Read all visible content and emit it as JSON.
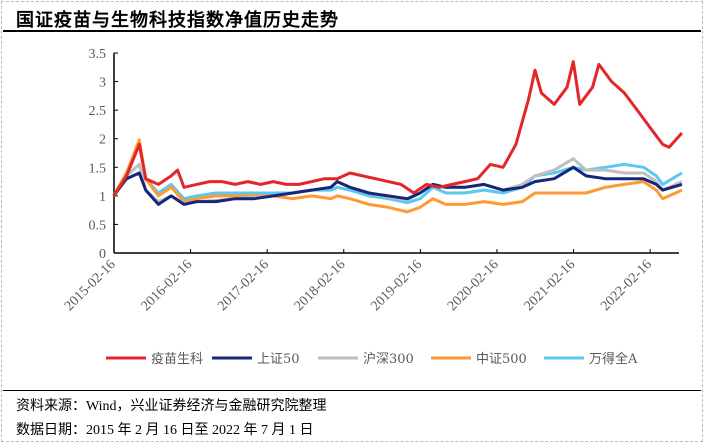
{
  "title": "国证疫苗与生物科技指数净值历史走势",
  "footer": {
    "source": "资料来源：Wind，兴业证券经济与金融研究院整理",
    "date_range": "数据日期：2015 年 2 月 16 日至 2022 年 7 月 1 日"
  },
  "chart_data": {
    "type": "line",
    "title": "国证疫苗与生物科技指数净值历史走势",
    "xlabel": "",
    "ylabel": "",
    "ylim": [
      0,
      3.5
    ],
    "yticks": [
      "0",
      "0.5",
      "1",
      "1.5",
      "2",
      "2.5",
      "3",
      "3.5"
    ],
    "xticks": [
      "2015-02-16",
      "2016-02-16",
      "2017-02-16",
      "2018-02-16",
      "2019-02-16",
      "2020-02-16",
      "2021-02-16",
      "2022-02-16"
    ],
    "x_range": [
      "2015-02-16",
      "2022-07-01"
    ],
    "grid": false,
    "legend_position": "bottom",
    "series": [
      {
        "name": "疫苗生科",
        "color": "#e3262a",
        "x": [
          "2015-02",
          "2015-04",
          "2015-06",
          "2015-07",
          "2015-09",
          "2015-11",
          "2015-12",
          "2016-01",
          "2016-03",
          "2016-05",
          "2016-07",
          "2016-09",
          "2016-11",
          "2017-01",
          "2017-03",
          "2017-05",
          "2017-07",
          "2017-09",
          "2017-11",
          "2018-01",
          "2018-03",
          "2018-05",
          "2018-07",
          "2018-09",
          "2018-11",
          "2019-01",
          "2019-03",
          "2019-05",
          "2019-07",
          "2019-09",
          "2019-11",
          "2020-01",
          "2020-03",
          "2020-05",
          "2020-06",
          "2020-07",
          "2020-08",
          "2020-09",
          "2020-11",
          "2021-01",
          "2021-02",
          "2021-03",
          "2021-05",
          "2021-06",
          "2021-08",
          "2021-10",
          "2021-12",
          "2022-02",
          "2022-04",
          "2022-05",
          "2022-07"
        ],
        "values": [
          1.0,
          1.35,
          1.9,
          1.3,
          1.2,
          1.35,
          1.45,
          1.15,
          1.2,
          1.25,
          1.25,
          1.2,
          1.25,
          1.2,
          1.25,
          1.2,
          1.2,
          1.25,
          1.3,
          1.3,
          1.4,
          1.35,
          1.3,
          1.25,
          1.2,
          1.05,
          1.2,
          1.15,
          1.2,
          1.25,
          1.3,
          1.55,
          1.5,
          1.9,
          2.3,
          2.7,
          3.2,
          2.8,
          2.6,
          2.9,
          3.35,
          2.6,
          2.9,
          3.3,
          3.0,
          2.8,
          2.5,
          2.2,
          1.9,
          1.85,
          2.1
        ]
      },
      {
        "name": "上证50",
        "color": "#15277a",
        "x": [
          "2015-02",
          "2015-04",
          "2015-06",
          "2015-07",
          "2015-09",
          "2015-11",
          "2016-01",
          "2016-03",
          "2016-06",
          "2016-09",
          "2016-12",
          "2017-03",
          "2017-06",
          "2017-09",
          "2017-12",
          "2018-01",
          "2018-03",
          "2018-06",
          "2018-09",
          "2018-12",
          "2019-02",
          "2019-04",
          "2019-06",
          "2019-09",
          "2019-12",
          "2020-03",
          "2020-06",
          "2020-08",
          "2020-11",
          "2021-02",
          "2021-04",
          "2021-07",
          "2021-10",
          "2022-01",
          "2022-03",
          "2022-04",
          "2022-07"
        ],
        "values": [
          1.0,
          1.3,
          1.4,
          1.1,
          0.85,
          1.0,
          0.85,
          0.9,
          0.9,
          0.95,
          0.95,
          1.0,
          1.05,
          1.1,
          1.15,
          1.25,
          1.15,
          1.05,
          1.0,
          0.95,
          1.05,
          1.2,
          1.15,
          1.15,
          1.2,
          1.1,
          1.15,
          1.25,
          1.3,
          1.5,
          1.35,
          1.3,
          1.3,
          1.3,
          1.2,
          1.1,
          1.2
        ]
      },
      {
        "name": "沪深300",
        "color": "#bfbfbf",
        "x": [
          "2015-02",
          "2015-04",
          "2015-06",
          "2015-07",
          "2015-09",
          "2015-11",
          "2016-01",
          "2016-03",
          "2016-06",
          "2016-09",
          "2016-12",
          "2017-03",
          "2017-06",
          "2017-09",
          "2017-12",
          "2018-01",
          "2018-03",
          "2018-06",
          "2018-09",
          "2018-12",
          "2019-02",
          "2019-04",
          "2019-06",
          "2019-09",
          "2019-12",
          "2020-03",
          "2020-06",
          "2020-08",
          "2020-11",
          "2021-02",
          "2021-04",
          "2021-07",
          "2021-10",
          "2022-01",
          "2022-03",
          "2022-04",
          "2022-07"
        ],
        "values": [
          1.0,
          1.35,
          1.55,
          1.1,
          0.9,
          1.0,
          0.87,
          0.9,
          0.92,
          0.95,
          0.97,
          1.0,
          1.05,
          1.1,
          1.15,
          1.25,
          1.15,
          1.05,
          0.98,
          0.93,
          1.05,
          1.2,
          1.15,
          1.15,
          1.2,
          1.1,
          1.2,
          1.35,
          1.45,
          1.65,
          1.45,
          1.45,
          1.4,
          1.4,
          1.25,
          1.1,
          1.25
        ]
      },
      {
        "name": "中证500",
        "color": "#ff9933",
        "x": [
          "2015-02",
          "2015-04",
          "2015-06",
          "2015-07",
          "2015-09",
          "2015-11",
          "2016-01",
          "2016-03",
          "2016-06",
          "2016-09",
          "2016-12",
          "2017-03",
          "2017-06",
          "2017-09",
          "2017-12",
          "2018-01",
          "2018-03",
          "2018-06",
          "2018-09",
          "2018-12",
          "2019-02",
          "2019-04",
          "2019-06",
          "2019-09",
          "2019-12",
          "2020-03",
          "2020-06",
          "2020-08",
          "2020-11",
          "2021-02",
          "2021-04",
          "2021-07",
          "2021-10",
          "2022-01",
          "2022-03",
          "2022-04",
          "2022-07"
        ],
        "values": [
          1.0,
          1.4,
          1.98,
          1.3,
          1.0,
          1.15,
          0.9,
          0.95,
          1.0,
          1.0,
          1.0,
          1.0,
          0.95,
          1.0,
          0.95,
          1.0,
          0.95,
          0.85,
          0.8,
          0.72,
          0.8,
          0.95,
          0.85,
          0.85,
          0.9,
          0.85,
          0.9,
          1.05,
          1.05,
          1.05,
          1.05,
          1.15,
          1.2,
          1.25,
          1.1,
          0.95,
          1.1
        ]
      },
      {
        "name": "万得全A",
        "color": "#5bc8f0",
        "x": [
          "2015-02",
          "2015-04",
          "2015-06",
          "2015-07",
          "2015-09",
          "2015-11",
          "2016-01",
          "2016-03",
          "2016-06",
          "2016-09",
          "2016-12",
          "2017-03",
          "2017-06",
          "2017-09",
          "2017-12",
          "2018-01",
          "2018-03",
          "2018-06",
          "2018-09",
          "2018-12",
          "2019-02",
          "2019-04",
          "2019-06",
          "2019-09",
          "2019-12",
          "2020-03",
          "2020-06",
          "2020-08",
          "2020-11",
          "2021-02",
          "2021-04",
          "2021-07",
          "2021-10",
          "2022-01",
          "2022-03",
          "2022-04",
          "2022-07"
        ],
        "values": [
          1.0,
          1.4,
          1.9,
          1.3,
          1.05,
          1.2,
          0.95,
          1.0,
          1.05,
          1.05,
          1.05,
          1.05,
          1.05,
          1.1,
          1.1,
          1.15,
          1.1,
          1.0,
          0.95,
          0.88,
          0.95,
          1.15,
          1.05,
          1.05,
          1.1,
          1.05,
          1.15,
          1.35,
          1.4,
          1.5,
          1.45,
          1.5,
          1.55,
          1.5,
          1.35,
          1.2,
          1.4
        ]
      }
    ]
  }
}
